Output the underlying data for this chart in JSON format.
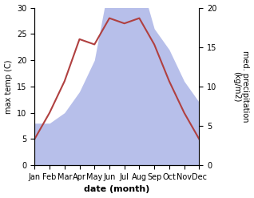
{
  "months": [
    "Jan",
    "Feb",
    "Mar",
    "Apr",
    "May",
    "Jun",
    "Jul",
    "Aug",
    "Sep",
    "Oct",
    "Nov",
    "Dec"
  ],
  "temperature": [
    5,
    10,
    16,
    24,
    23,
    28,
    27,
    28,
    23,
    16,
    10,
    5
  ],
  "precipitation_mm": [
    8,
    8,
    10,
    14,
    20,
    35,
    36,
    36,
    26,
    22,
    16,
    12
  ],
  "temp_color": "#b04040",
  "precip_fill_color": "#b0b8e8",
  "left_ylim": [
    0,
    30
  ],
  "right_ylim": [
    0,
    25
  ],
  "right_yticks": [
    0,
    5,
    10,
    15,
    20
  ],
  "left_yticks": [
    0,
    5,
    10,
    15,
    20,
    25,
    30
  ],
  "xlabel": "date (month)",
  "ylabel_left": "max temp (C)",
  "ylabel_right": "med. precipitation\n(kg/m2)",
  "figsize": [
    3.18,
    2.47
  ],
  "dpi": 100,
  "precip_scale_factor": 1.5
}
